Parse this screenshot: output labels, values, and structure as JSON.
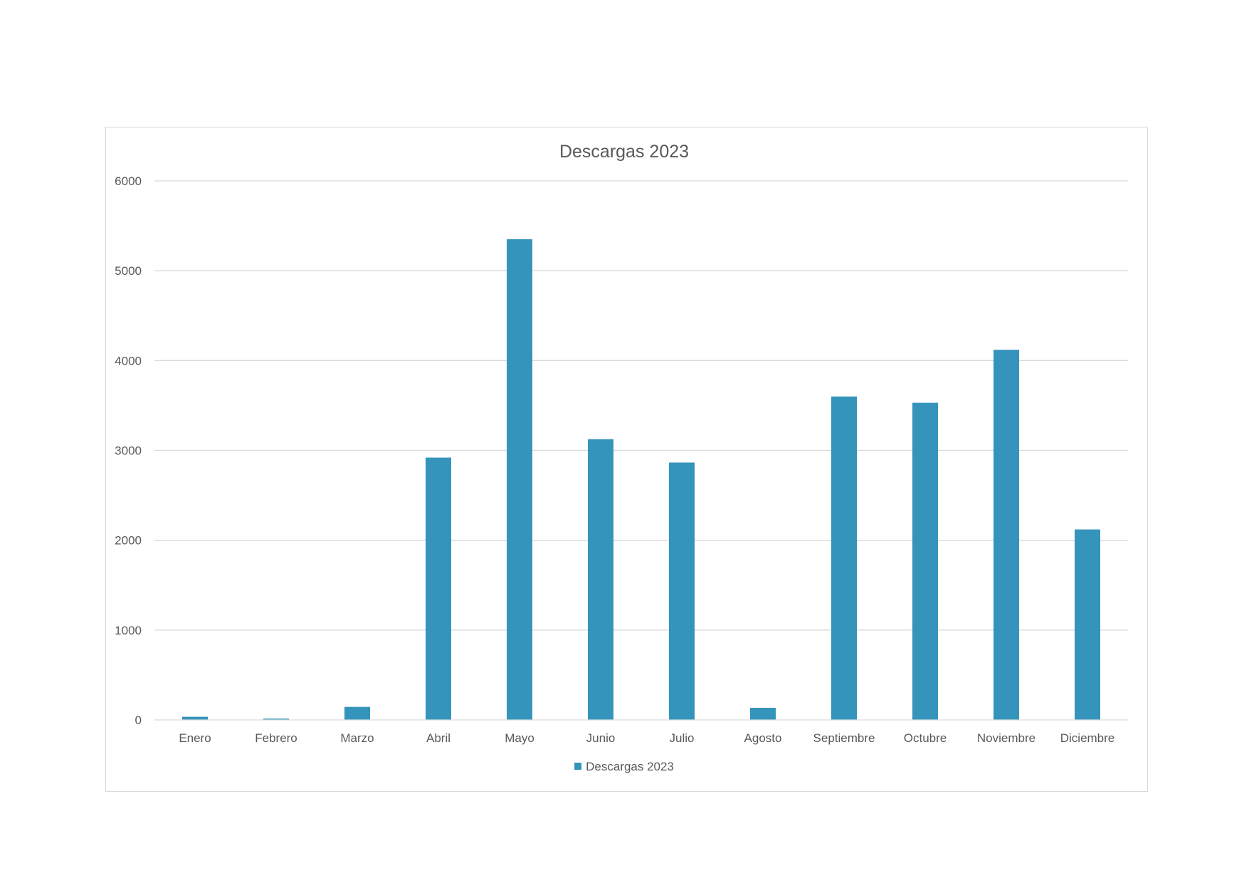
{
  "chart_data": {
    "type": "bar",
    "title": "Descargas 2023",
    "xlabel": "",
    "ylabel": "",
    "categories": [
      "Enero",
      "Febrero",
      "Marzo",
      "Abril",
      "Mayo",
      "Junio",
      "Julio",
      "Agosto",
      "Septiembre",
      "Octubre",
      "Noviembre",
      "Diciembre"
    ],
    "series": [
      {
        "name": "Descargas 2023",
        "values": [
          35,
          15,
          145,
          2920,
          5350,
          3125,
          2865,
          135,
          3600,
          3530,
          4120,
          2120
        ],
        "color": "#3594bb"
      }
    ],
    "ylim": [
      0,
      6000
    ],
    "yticks": [
      0,
      1000,
      2000,
      3000,
      4000,
      5000,
      6000
    ],
    "grid": true,
    "legend_position": "bottom"
  }
}
